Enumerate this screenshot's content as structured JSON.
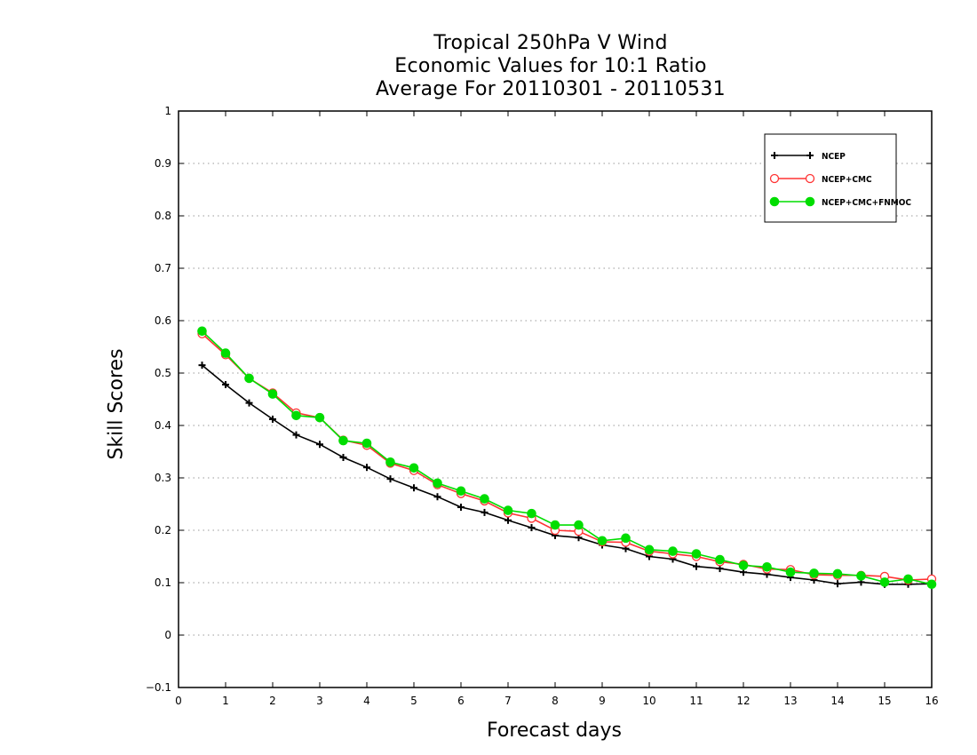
{
  "chart_data": {
    "type": "line",
    "title_lines": [
      "Tropical 250hPa V Wind",
      "Economic Values for 10:1 Ratio",
      "Average For 20110301 - 20110531"
    ],
    "xlabel": "Forecast days",
    "ylabel": "Skill Scores",
    "xlim": [
      0,
      16
    ],
    "ylim": [
      -0.1,
      1
    ],
    "x_ticks": [
      "0",
      "1",
      "2",
      "3",
      "4",
      "5",
      "6",
      "7",
      "8",
      "9",
      "10",
      "11",
      "12",
      "13",
      "14",
      "15",
      "16"
    ],
    "y_ticks": [
      "−0.1",
      "0",
      "0.1",
      "0.2",
      "0.3",
      "0.4",
      "0.5",
      "0.6",
      "0.7",
      "0.8",
      "0.9",
      "1"
    ],
    "y_tick_values": [
      -0.1,
      0,
      0.1,
      0.2,
      0.3,
      0.4,
      0.5,
      0.6,
      0.7,
      0.8,
      0.9,
      1
    ],
    "grid": "horizontal dotted",
    "legend_position": "top-right",
    "x": [
      0.5,
      1,
      1.5,
      2,
      2.5,
      3,
      3.5,
      4,
      4.5,
      5,
      5.5,
      6,
      6.5,
      7,
      7.5,
      8,
      8.5,
      9,
      9.5,
      10,
      10.5,
      11,
      11.5,
      12,
      12.5,
      13,
      13.5,
      14,
      14.5,
      15,
      15.5,
      16
    ],
    "series": [
      {
        "name": "NCEP",
        "color": "#000000",
        "marker": "plus",
        "values": [
          0.515,
          0.478,
          0.443,
          0.412,
          0.382,
          0.364,
          0.339,
          0.32,
          0.298,
          0.281,
          0.264,
          0.244,
          0.234,
          0.219,
          0.205,
          0.19,
          0.186,
          0.172,
          0.165,
          0.15,
          0.145,
          0.131,
          0.127,
          0.12,
          0.116,
          0.11,
          0.105,
          0.098,
          0.101,
          0.097,
          0.097,
          0.098
        ]
      },
      {
        "name": "NCEP+CMC",
        "color": "#ff3333",
        "marker": "open-circle",
        "values": [
          0.575,
          0.535,
          0.49,
          0.462,
          0.424,
          0.415,
          0.372,
          0.362,
          0.328,
          0.314,
          0.287,
          0.27,
          0.256,
          0.233,
          0.223,
          0.2,
          0.198,
          0.178,
          0.177,
          0.16,
          0.155,
          0.15,
          0.14,
          0.135,
          0.126,
          0.125,
          0.115,
          0.114,
          0.114,
          0.112,
          0.105,
          0.107
        ]
      },
      {
        "name": "NCEP+CMC+FNMOC",
        "color": "#00dd00",
        "marker": "filled-circle",
        "values": [
          0.58,
          0.538,
          0.49,
          0.46,
          0.419,
          0.415,
          0.371,
          0.366,
          0.33,
          0.319,
          0.29,
          0.275,
          0.26,
          0.238,
          0.232,
          0.21,
          0.21,
          0.18,
          0.185,
          0.163,
          0.16,
          0.155,
          0.144,
          0.133,
          0.13,
          0.12,
          0.118,
          0.117,
          0.113,
          0.101,
          0.107,
          0.097
        ]
      }
    ]
  }
}
